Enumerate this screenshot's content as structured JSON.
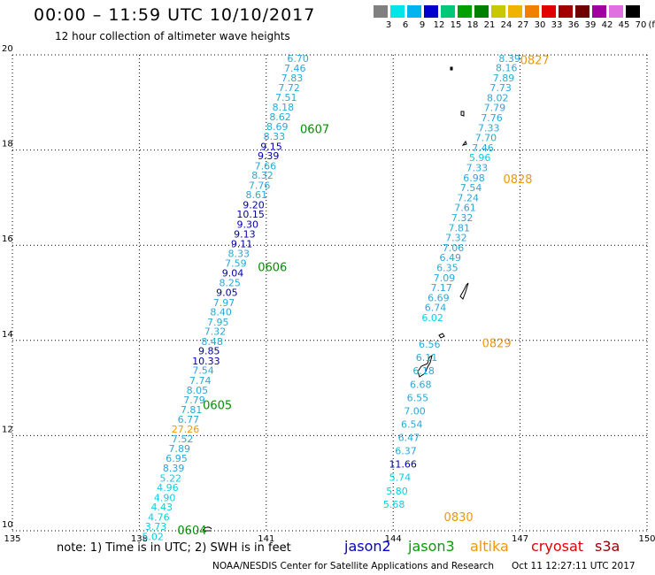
{
  "header": {
    "title": "00:00 – 11:59 UTC 10/10/2017",
    "subtitle": "12 hour collection of altimeter wave heights"
  },
  "color_scale": {
    "unit": "(ft)",
    "labels": [
      "3",
      "6",
      "9",
      "12",
      "15",
      "18",
      "21",
      "24",
      "27",
      "30",
      "33",
      "36",
      "39",
      "42",
      "45",
      "70"
    ],
    "colors": [
      "#808080",
      "#00e5e5",
      "#00b4f0",
      "#0000cc",
      "#00c878",
      "#00a000",
      "#008000",
      "#c8c800",
      "#f0b400",
      "#f08000",
      "#e00000",
      "#a00000",
      "#700000",
      "#a000a0",
      "#e070e0",
      "#000000"
    ]
  },
  "map": {
    "lon_labels": [
      "135",
      "138",
      "141",
      "144",
      "147",
      "150"
    ],
    "lat_labels": [
      "10",
      "12",
      "14",
      "16",
      "18",
      "20"
    ],
    "colors": {
      "light_cyan": "#2aa8d8",
      "cyan": "#00d2e6",
      "navy": "#0000aa",
      "orange": "#f0960a",
      "green": "#009000",
      "grid": "#000000"
    },
    "track_labels": [
      {
        "text": "0604",
        "lon": 138.9,
        "lat": 10.02,
        "color": "green"
      },
      {
        "text": "0605",
        "lon": 139.5,
        "lat": 12.65,
        "color": "green"
      },
      {
        "text": "0606",
        "lon": 140.8,
        "lat": 15.55,
        "color": "green"
      },
      {
        "text": "0607",
        "lon": 141.8,
        "lat": 18.45,
        "color": "green"
      },
      {
        "text": "0827",
        "lon": 147.0,
        "lat": 19.9,
        "color": "orange"
      },
      {
        "text": "0828",
        "lon": 146.6,
        "lat": 17.4,
        "color": "orange"
      },
      {
        "text": "0829",
        "lon": 146.1,
        "lat": 13.95,
        "color": "orange"
      },
      {
        "text": "0830",
        "lon": 145.2,
        "lat": 10.3,
        "color": "orange"
      }
    ],
    "track_a": [
      {
        "v": "6.70",
        "lon": 141.75,
        "lat": 19.93,
        "c": "light_cyan"
      },
      {
        "v": "7.46",
        "lon": 141.68,
        "lat": 19.72,
        "c": "light_cyan"
      },
      {
        "v": "7.83",
        "lon": 141.61,
        "lat": 19.52,
        "c": "light_cyan"
      },
      {
        "v": "7.72",
        "lon": 141.54,
        "lat": 19.31,
        "c": "light_cyan"
      },
      {
        "v": "7.51",
        "lon": 141.47,
        "lat": 19.11,
        "c": "light_cyan"
      },
      {
        "v": "8.18",
        "lon": 141.4,
        "lat": 18.9,
        "c": "light_cyan"
      },
      {
        "v": "8.62",
        "lon": 141.33,
        "lat": 18.7,
        "c": "light_cyan"
      },
      {
        "v": "8.69",
        "lon": 141.26,
        "lat": 18.49,
        "c": "light_cyan"
      },
      {
        "v": "8.33",
        "lon": 141.19,
        "lat": 18.29,
        "c": "light_cyan"
      },
      {
        "v": "9.15",
        "lon": 141.12,
        "lat": 18.08,
        "c": "navy"
      },
      {
        "v": "9.39",
        "lon": 141.05,
        "lat": 17.88,
        "c": "navy"
      },
      {
        "v": "7.66",
        "lon": 140.98,
        "lat": 17.67,
        "c": "light_cyan"
      },
      {
        "v": "8.32",
        "lon": 140.91,
        "lat": 17.47,
        "c": "light_cyan"
      },
      {
        "v": "7.76",
        "lon": 140.84,
        "lat": 17.26,
        "c": "light_cyan"
      },
      {
        "v": "8.61",
        "lon": 140.77,
        "lat": 17.06,
        "c": "light_cyan"
      },
      {
        "v": "9.20",
        "lon": 140.7,
        "lat": 16.85,
        "c": "navy"
      },
      {
        "v": "10.15",
        "lon": 140.63,
        "lat": 16.65,
        "c": "navy"
      },
      {
        "v": "9.30",
        "lon": 140.56,
        "lat": 16.44,
        "c": "navy"
      },
      {
        "v": "9.13",
        "lon": 140.49,
        "lat": 16.24,
        "c": "navy"
      },
      {
        "v": "9.11",
        "lon": 140.42,
        "lat": 16.03,
        "c": "navy"
      },
      {
        "v": "8.33",
        "lon": 140.35,
        "lat": 15.83,
        "c": "light_cyan"
      },
      {
        "v": "7.59",
        "lon": 140.28,
        "lat": 15.62,
        "c": "light_cyan"
      },
      {
        "v": "9.04",
        "lon": 140.21,
        "lat": 15.42,
        "c": "navy"
      },
      {
        "v": "8.25",
        "lon": 140.14,
        "lat": 15.21,
        "c": "light_cyan"
      },
      {
        "v": "9.05",
        "lon": 140.07,
        "lat": 15.01,
        "c": "navy"
      },
      {
        "v": "7.97",
        "lon": 140.0,
        "lat": 14.8,
        "c": "light_cyan"
      },
      {
        "v": "8.40",
        "lon": 139.93,
        "lat": 14.6,
        "c": "light_cyan"
      },
      {
        "v": "7.95",
        "lon": 139.86,
        "lat": 14.39,
        "c": "light_cyan"
      },
      {
        "v": "7.32",
        "lon": 139.79,
        "lat": 14.19,
        "c": "light_cyan"
      },
      {
        "v": "8.48",
        "lon": 139.72,
        "lat": 13.98,
        "c": "light_cyan"
      },
      {
        "v": "9.85",
        "lon": 139.65,
        "lat": 13.78,
        "c": "navy"
      },
      {
        "v": "10.33",
        "lon": 139.58,
        "lat": 13.57,
        "c": "navy"
      },
      {
        "v": "7.54",
        "lon": 139.51,
        "lat": 13.37,
        "c": "light_cyan"
      },
      {
        "v": "7.74",
        "lon": 139.44,
        "lat": 13.16,
        "c": "light_cyan"
      },
      {
        "v": "8.05",
        "lon": 139.37,
        "lat": 12.96,
        "c": "light_cyan"
      },
      {
        "v": "7.79",
        "lon": 139.3,
        "lat": 12.75,
        "c": "light_cyan"
      },
      {
        "v": "7.81",
        "lon": 139.23,
        "lat": 12.55,
        "c": "light_cyan"
      },
      {
        "v": "6.77",
        "lon": 139.16,
        "lat": 12.34,
        "c": "light_cyan"
      },
      {
        "v": "27.26",
        "lon": 139.09,
        "lat": 12.14,
        "c": "orange"
      },
      {
        "v": "7.52",
        "lon": 139.02,
        "lat": 11.93,
        "c": "light_cyan"
      },
      {
        "v": "7.89",
        "lon": 138.95,
        "lat": 11.73,
        "c": "light_cyan"
      },
      {
        "v": "6.95",
        "lon": 138.88,
        "lat": 11.52,
        "c": "light_cyan"
      },
      {
        "v": "8.39",
        "lon": 138.81,
        "lat": 11.32,
        "c": "light_cyan"
      },
      {
        "v": "5.22",
        "lon": 138.74,
        "lat": 11.11,
        "c": "cyan"
      },
      {
        "v": "4.96",
        "lon": 138.67,
        "lat": 10.91,
        "c": "cyan"
      },
      {
        "v": "4.90",
        "lon": 138.6,
        "lat": 10.7,
        "c": "cyan"
      },
      {
        "v": "4.43",
        "lon": 138.53,
        "lat": 10.5,
        "c": "cyan"
      },
      {
        "v": "4.76",
        "lon": 138.46,
        "lat": 10.29,
        "c": "cyan"
      },
      {
        "v": "3.73",
        "lon": 138.39,
        "lat": 10.09,
        "c": "cyan"
      },
      {
        "v": "5.02",
        "lon": 138.32,
        "lat": 9.88,
        "c": "cyan"
      }
    ],
    "track_b": [
      {
        "v": "8.39",
        "lon": 146.75,
        "lat": 19.93,
        "c": "light_cyan"
      },
      {
        "v": "8.16",
        "lon": 146.68,
        "lat": 19.73,
        "c": "light_cyan"
      },
      {
        "v": "7.89",
        "lon": 146.61,
        "lat": 19.52,
        "c": "light_cyan"
      },
      {
        "v": "7.73",
        "lon": 146.54,
        "lat": 19.31,
        "c": "light_cyan"
      },
      {
        "v": "8.02",
        "lon": 146.47,
        "lat": 19.1,
        "c": "light_cyan"
      },
      {
        "v": "7.79",
        "lon": 146.4,
        "lat": 18.89,
        "c": "light_cyan"
      },
      {
        "v": "7.76",
        "lon": 146.33,
        "lat": 18.68,
        "c": "light_cyan"
      },
      {
        "v": "7.33",
        "lon": 146.26,
        "lat": 18.47,
        "c": "light_cyan"
      },
      {
        "v": "7.70",
        "lon": 146.19,
        "lat": 18.26,
        "c": "light_cyan"
      },
      {
        "v": "7.46",
        "lon": 146.12,
        "lat": 18.05,
        "c": "light_cyan"
      },
      {
        "v": "5.96",
        "lon": 146.05,
        "lat": 17.84,
        "c": "cyan"
      },
      {
        "v": "7.33",
        "lon": 145.98,
        "lat": 17.63,
        "c": "light_cyan"
      },
      {
        "v": "6.98",
        "lon": 145.91,
        "lat": 17.42,
        "c": "light_cyan"
      },
      {
        "v": "7.54",
        "lon": 145.84,
        "lat": 17.21,
        "c": "light_cyan"
      },
      {
        "v": "7.24",
        "lon": 145.77,
        "lat": 17.0,
        "c": "light_cyan"
      },
      {
        "v": "7.61",
        "lon": 145.7,
        "lat": 16.79,
        "c": "light_cyan"
      },
      {
        "v": "7.32",
        "lon": 145.63,
        "lat": 16.58,
        "c": "light_cyan"
      },
      {
        "v": "7.81",
        "lon": 145.56,
        "lat": 16.37,
        "c": "light_cyan"
      },
      {
        "v": "7.32",
        "lon": 145.49,
        "lat": 16.16,
        "c": "light_cyan"
      },
      {
        "v": "7.06",
        "lon": 145.42,
        "lat": 15.95,
        "c": "light_cyan"
      },
      {
        "v": "6.49",
        "lon": 145.35,
        "lat": 15.74,
        "c": "light_cyan"
      },
      {
        "v": "6.35",
        "lon": 145.28,
        "lat": 15.53,
        "c": "light_cyan"
      },
      {
        "v": "7.09",
        "lon": 145.21,
        "lat": 15.32,
        "c": "light_cyan"
      },
      {
        "v": "7.17",
        "lon": 145.14,
        "lat": 15.11,
        "c": "light_cyan"
      },
      {
        "v": "6.69",
        "lon": 145.07,
        "lat": 14.9,
        "c": "light_cyan"
      },
      {
        "v": "6.74",
        "lon": 145.0,
        "lat": 14.69,
        "c": "light_cyan"
      },
      {
        "v": "6.02",
        "lon": 144.93,
        "lat": 14.48,
        "c": "cyan"
      },
      {
        "v": "6.56",
        "lon": 144.86,
        "lat": 13.92,
        "c": "light_cyan"
      },
      {
        "v": "6.11",
        "lon": 144.79,
        "lat": 13.64,
        "c": "light_cyan"
      },
      {
        "v": "6.18",
        "lon": 144.72,
        "lat": 13.36,
        "c": "light_cyan"
      },
      {
        "v": "6.68",
        "lon": 144.65,
        "lat": 13.08,
        "c": "light_cyan"
      },
      {
        "v": "6.55",
        "lon": 144.58,
        "lat": 12.8,
        "c": "light_cyan"
      },
      {
        "v": "7.00",
        "lon": 144.51,
        "lat": 12.52,
        "c": "light_cyan"
      },
      {
        "v": "6.54",
        "lon": 144.44,
        "lat": 12.24,
        "c": "light_cyan"
      },
      {
        "v": "6.47",
        "lon": 144.37,
        "lat": 11.96,
        "c": "light_cyan"
      },
      {
        "v": "6.37",
        "lon": 144.3,
        "lat": 11.68,
        "c": "light_cyan"
      },
      {
        "v": "11.66",
        "lon": 144.23,
        "lat": 11.4,
        "c": "navy"
      },
      {
        "v": "5.74",
        "lon": 144.16,
        "lat": 11.12,
        "c": "cyan"
      },
      {
        "v": "5.80",
        "lon": 144.09,
        "lat": 10.84,
        "c": "cyan"
      },
      {
        "v": "5.68",
        "lon": 144.02,
        "lat": 10.56,
        "c": "cyan"
      }
    ]
  },
  "footer": {
    "note": "note: 1) Time is in UTC; 2) SWH is in feet",
    "satellites": [
      {
        "name": "jason2",
        "color": "#0000cc"
      },
      {
        "name": "jason3",
        "color": "#00a000"
      },
      {
        "name": "altika",
        "color": "#f0960a"
      },
      {
        "name": "cryosat",
        "color": "#e00000"
      },
      {
        "name": "s3a",
        "color": "#a00000"
      }
    ],
    "credit": "NOAA/NESDIS Center for Satellite Applications and Research      Oct 11 12:27:11 UTC 2017"
  }
}
